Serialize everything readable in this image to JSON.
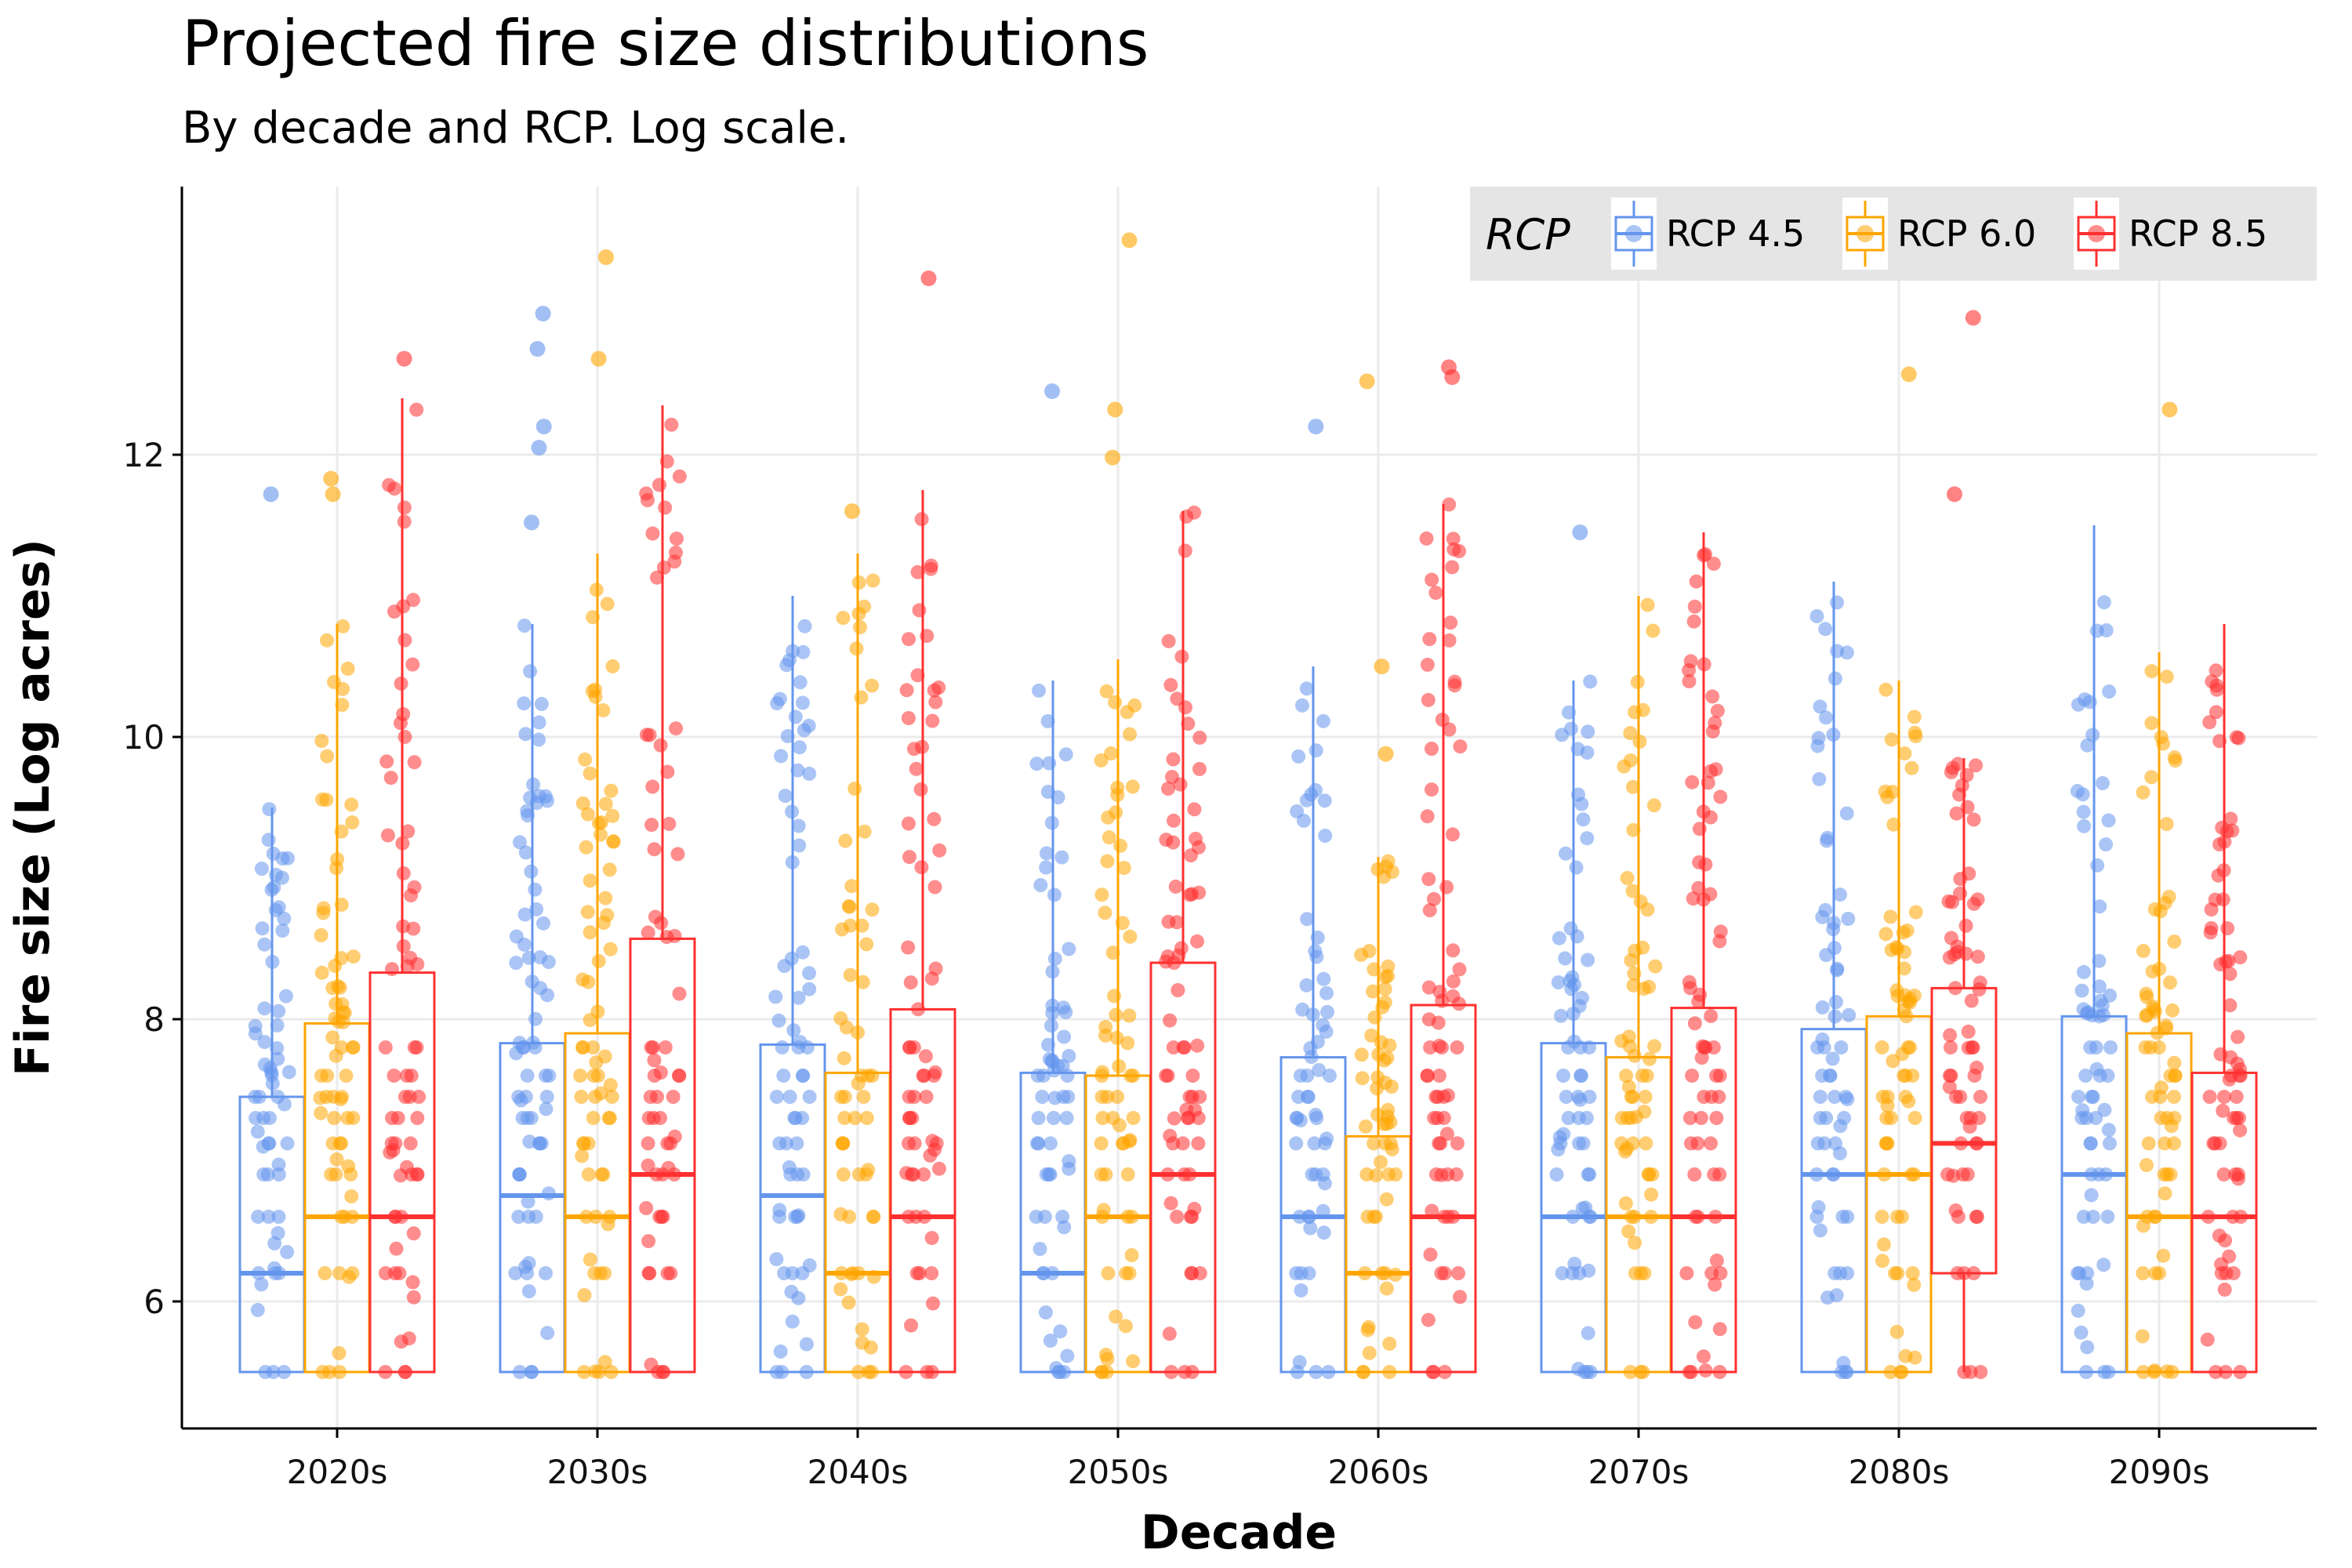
{
  "title": "Projected fire size distributions",
  "subtitle": "By decade and RCP. Log scale.",
  "colors": {
    "rcp45": "#6495ED",
    "rcp60": "#FFA500",
    "rcp85": "#FF3030",
    "legend_bg": "#E5E5E5",
    "grid": "#EBEBEB"
  },
  "chart_data": {
    "type": "boxplot",
    "title": "Projected fire size distributions",
    "subtitle": "By decade and RCP. Log scale.",
    "xlabel": "Decade",
    "ylabel": "Fire size (Log acres)",
    "categories": [
      "2020s",
      "2030s",
      "2040s",
      "2050s",
      "2060s",
      "2070s",
      "2080s",
      "2090s"
    ],
    "ylim": [
      5.1,
      13.9
    ],
    "yticks": [
      6,
      8,
      10,
      12
    ],
    "grid": true,
    "legend": {
      "title": "RCP",
      "position": "top-right"
    },
    "series": [
      {
        "name": "RCP 4.5",
        "color": "#6495ED",
        "boxes": [
          {
            "lower": 5.5,
            "q1": 5.5,
            "median": 6.2,
            "q3": 7.45,
            "upper": 9.5
          },
          {
            "lower": 5.5,
            "q1": 5.5,
            "median": 6.75,
            "q3": 7.83,
            "upper": 10.8
          },
          {
            "lower": 5.5,
            "q1": 5.5,
            "median": 6.75,
            "q3": 7.82,
            "upper": 11.0
          },
          {
            "lower": 5.5,
            "q1": 5.5,
            "median": 6.2,
            "q3": 7.62,
            "upper": 10.4
          },
          {
            "lower": 5.5,
            "q1": 5.5,
            "median": 6.6,
            "q3": 7.73,
            "upper": 10.5
          },
          {
            "lower": 5.5,
            "q1": 5.5,
            "median": 6.6,
            "q3": 7.83,
            "upper": 10.4
          },
          {
            "lower": 5.5,
            "q1": 5.5,
            "median": 6.9,
            "q3": 7.93,
            "upper": 11.1
          },
          {
            "lower": 5.5,
            "q1": 5.5,
            "median": 6.9,
            "q3": 8.02,
            "upper": 11.5
          }
        ],
        "outliers": [
          [
            11.72
          ],
          [
            13.0,
            12.75,
            12.2,
            12.05,
            11.52
          ],
          [],
          [
            12.45
          ],
          [
            12.2
          ],
          [
            11.45
          ],
          [],
          []
        ]
      },
      {
        "name": "RCP 6.0",
        "color": "#FFA500",
        "boxes": [
          {
            "lower": 5.5,
            "q1": 5.5,
            "median": 6.6,
            "q3": 7.97,
            "upper": 10.8
          },
          {
            "lower": 5.5,
            "q1": 5.5,
            "median": 6.6,
            "q3": 7.9,
            "upper": 11.3
          },
          {
            "lower": 5.5,
            "q1": 5.5,
            "median": 6.2,
            "q3": 7.62,
            "upper": 11.3
          },
          {
            "lower": 5.5,
            "q1": 5.5,
            "median": 6.6,
            "q3": 7.6,
            "upper": 10.55
          },
          {
            "lower": 5.5,
            "q1": 5.5,
            "median": 6.2,
            "q3": 7.17,
            "upper": 9.15
          },
          {
            "lower": 5.5,
            "q1": 5.5,
            "median": 6.6,
            "q3": 7.73,
            "upper": 11.0
          },
          {
            "lower": 5.5,
            "q1": 5.5,
            "median": 6.9,
            "q3": 8.02,
            "upper": 10.4
          },
          {
            "lower": 5.5,
            "q1": 5.5,
            "median": 6.6,
            "q3": 7.9,
            "upper": 10.6
          }
        ],
        "outliers": [
          [
            11.83,
            11.72
          ],
          [
            13.4,
            12.68
          ],
          [
            11.6
          ],
          [
            13.52,
            12.32,
            11.98
          ],
          [
            12.52,
            10.5,
            9.88
          ],
          [],
          [
            12.57
          ],
          [
            12.32
          ]
        ]
      },
      {
        "name": "RCP 8.5",
        "color": "#FF3030",
        "boxes": [
          {
            "lower": 5.5,
            "q1": 5.5,
            "median": 6.6,
            "q3": 8.33,
            "upper": 12.4
          },
          {
            "lower": 5.5,
            "q1": 5.5,
            "median": 6.9,
            "q3": 8.57,
            "upper": 12.35
          },
          {
            "lower": 5.5,
            "q1": 5.5,
            "median": 6.6,
            "q3": 8.07,
            "upper": 11.75
          },
          {
            "lower": 5.5,
            "q1": 5.5,
            "median": 6.9,
            "q3": 8.4,
            "upper": 11.6
          },
          {
            "lower": 5.5,
            "q1": 5.5,
            "median": 6.6,
            "q3": 8.1,
            "upper": 11.65
          },
          {
            "lower": 5.5,
            "q1": 5.5,
            "median": 6.6,
            "q3": 8.08,
            "upper": 11.45
          },
          {
            "lower": 5.5,
            "q1": 6.2,
            "median": 7.12,
            "q3": 8.22,
            "upper": 9.85
          },
          {
            "lower": 5.5,
            "q1": 5.5,
            "median": 6.6,
            "q3": 7.62,
            "upper": 10.8
          }
        ],
        "outliers": [
          [
            12.68
          ],
          [],
          [
            13.25
          ],
          [],
          [
            12.62,
            12.55
          ],
          [],
          [
            12.97,
            11.72
          ],
          []
        ]
      }
    ]
  }
}
